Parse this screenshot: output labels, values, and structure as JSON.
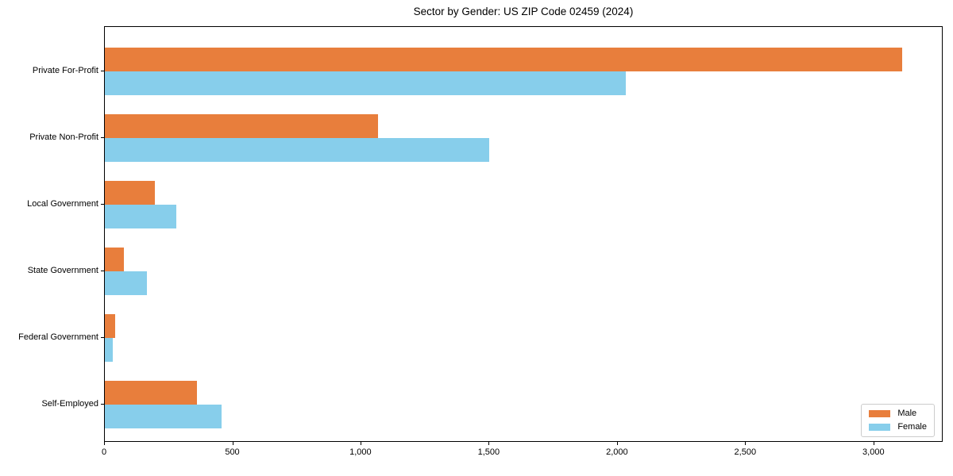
{
  "chart_data": {
    "type": "bar",
    "orientation": "horizontal",
    "title": "Sector by Gender: US ZIP Code 02459 (2024)",
    "categories": [
      "Private For-Profit",
      "Private Non-Profit",
      "Local Government",
      "State Government",
      "Federal Government",
      "Self-Employed"
    ],
    "series": [
      {
        "name": "Male",
        "color": "#E87E3C",
        "values": [
          3110,
          1065,
          195,
          73,
          40,
          358
        ]
      },
      {
        "name": "Female",
        "color": "#87CEEB",
        "values": [
          2030,
          1500,
          280,
          165,
          30,
          455
        ]
      }
    ],
    "xlabel": "",
    "ylabel": "",
    "xlim": [
      0,
      3270
    ],
    "xticks": [
      0,
      500,
      1000,
      1500,
      2000,
      2500,
      3000
    ],
    "xtick_labels": [
      "0",
      "500",
      "1,000",
      "1,500",
      "2,000",
      "2,500",
      "3,000"
    ],
    "grid": false,
    "legend": {
      "position": "lower right",
      "entries": [
        "Male",
        "Female"
      ]
    }
  }
}
